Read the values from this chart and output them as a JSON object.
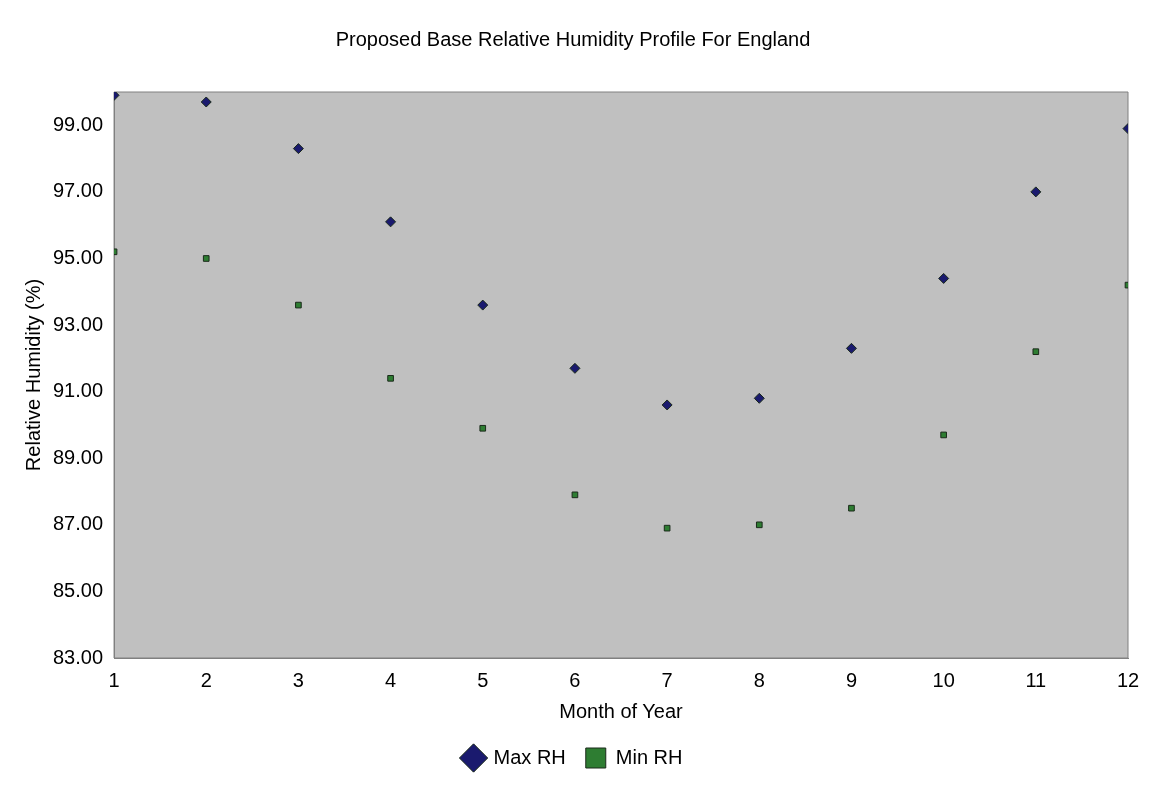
{
  "chart_data": {
    "type": "scatter",
    "title": "Proposed Base Relative Humidity Profile For England",
    "xlabel": "Month of Year",
    "ylabel": "Relative Humidity (%)",
    "x": [
      1,
      2,
      3,
      4,
      5,
      6,
      7,
      8,
      9,
      10,
      11,
      12
    ],
    "series": [
      {
        "name": "Max RH",
        "color": "#1a1a6e",
        "marker": "diamond",
        "values": [
          99.9,
          99.7,
          98.3,
          96.1,
          93.6,
          91.7,
          90.6,
          90.8,
          92.3,
          94.4,
          97.0,
          98.9
        ]
      },
      {
        "name": "Min RH",
        "color": "#2e7d32",
        "marker": "square",
        "values": [
          95.2,
          95.0,
          93.6,
          91.4,
          89.9,
          87.9,
          86.9,
          87.0,
          87.5,
          89.7,
          92.2,
          94.2
        ]
      }
    ],
    "xlim": [
      1,
      12
    ],
    "xticks": [
      1,
      2,
      3,
      4,
      5,
      6,
      7,
      8,
      9,
      10,
      11,
      12
    ],
    "ylim": [
      83,
      100
    ],
    "yticks": [
      {
        "value": 83,
        "label": "83.00"
      },
      {
        "value": 85,
        "label": "85.00"
      },
      {
        "value": 87,
        "label": "87.00"
      },
      {
        "value": 89,
        "label": "89.00"
      },
      {
        "value": 91,
        "label": "91.00"
      },
      {
        "value": 93,
        "label": "93.00"
      },
      {
        "value": 95,
        "label": "95.00"
      },
      {
        "value": 97,
        "label": "97.00"
      },
      {
        "value": 99,
        "label": "99.00"
      }
    ],
    "legend": "bottom"
  }
}
